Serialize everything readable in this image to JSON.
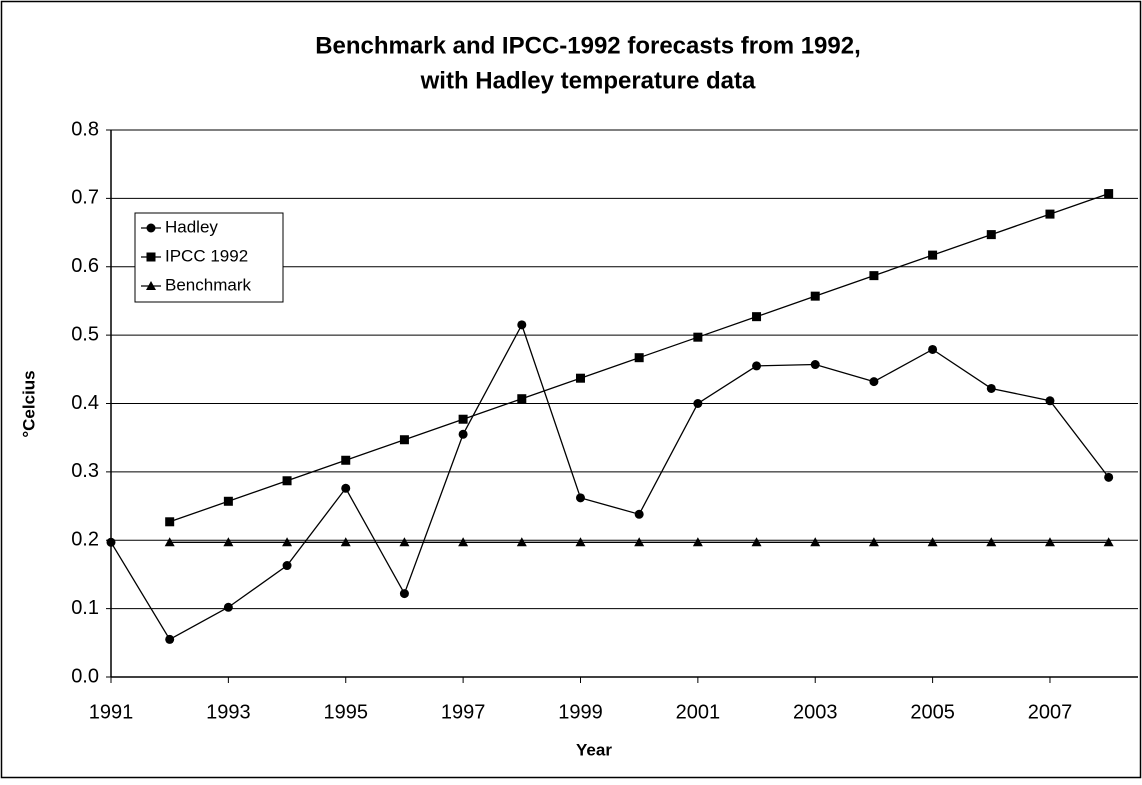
{
  "chart_data": {
    "type": "line",
    "title": [
      "Benchmark and IPCC-1992 forecasts from 1992,",
      "with Hadley temperature data"
    ],
    "x_label": "Year",
    "y_label": "°Celcius",
    "x": [
      1991,
      1992,
      1993,
      1994,
      1995,
      1996,
      1997,
      1998,
      1999,
      2000,
      2001,
      2002,
      2003,
      2004,
      2005,
      2006,
      2007,
      2008
    ],
    "series": [
      {
        "name": "Hadley",
        "color": "#000000",
        "marker": "circle",
        "values": [
          0.197,
          0.055,
          0.102,
          0.163,
          0.276,
          0.122,
          0.355,
          0.515,
          0.262,
          0.238,
          0.4,
          0.455,
          0.457,
          0.432,
          0.479,
          0.422,
          0.404,
          0.292
        ]
      },
      {
        "name": "IPCC 1992",
        "color": "#000000",
        "marker": "square",
        "values": [
          null,
          0.227,
          0.257,
          0.287,
          0.317,
          0.347,
          0.377,
          0.407,
          0.437,
          0.467,
          0.497,
          0.527,
          0.557,
          0.587,
          0.617,
          0.647,
          0.677,
          0.707
        ]
      },
      {
        "name": "Benchmark",
        "color": "#000000",
        "marker": "triangle",
        "values": [
          null,
          0.197,
          0.197,
          0.197,
          0.197,
          0.197,
          0.197,
          0.197,
          0.197,
          0.197,
          0.197,
          0.197,
          0.197,
          0.197,
          0.197,
          0.197,
          0.197,
          0.197
        ]
      }
    ],
    "xlim": [
      1991,
      2008.5
    ],
    "xticks": [
      1991,
      1993,
      1995,
      1997,
      1999,
      2001,
      2003,
      2005,
      2007
    ],
    "ylim": [
      0,
      0.8
    ],
    "yticks": [
      {
        "value": 0,
        "label": "0.0"
      },
      0.1,
      0.2,
      0.3,
      0.4,
      0.5,
      0.6,
      0.7,
      0.8
    ],
    "grid": true,
    "legend": "top-left"
  }
}
